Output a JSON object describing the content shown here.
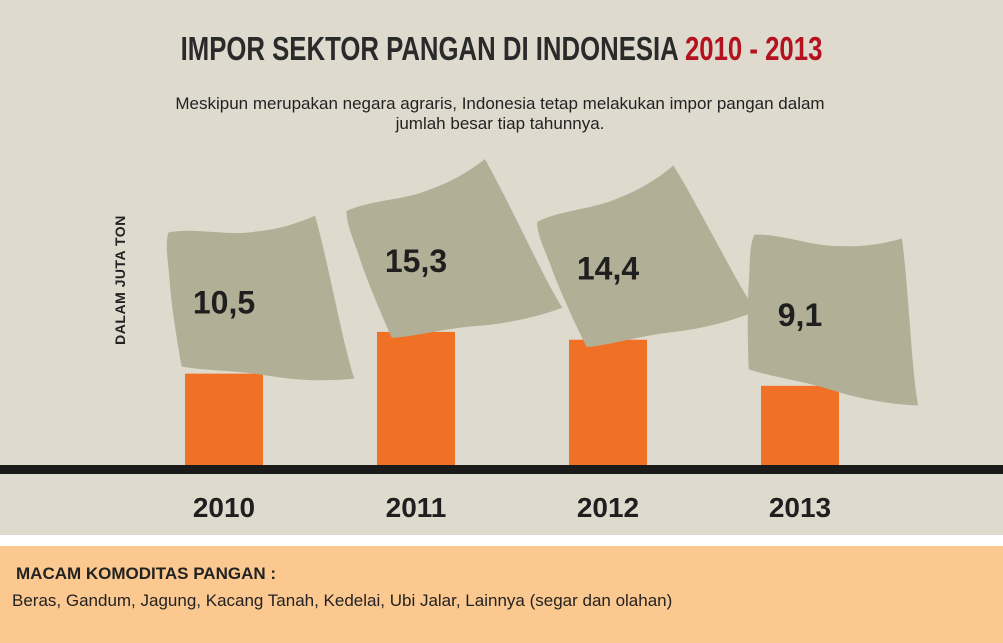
{
  "header": {
    "title_main": "IMPOR SEKTOR PANGAN DI INDONESIA",
    "title_years": "2010 - 2013",
    "subtitle": "Meskipun merupakan negara agraris, Indonesia tetap melakukan impor pangan dalam jumlah besar tiap tahunnya."
  },
  "chart_data": {
    "type": "bar",
    "categories": [
      "2010",
      "2011",
      "2012",
      "2013"
    ],
    "values": [
      10.5,
      15.3,
      14.4,
      9.1
    ],
    "value_labels": [
      "10,5",
      "15,3",
      "14,4",
      "9,1"
    ],
    "title": "IMPOR SEKTOR PANGAN DI INDONESIA 2010 - 2013",
    "ylabel": "DALAM JUTA TON",
    "xlabel": "",
    "grid": false,
    "legend": "none",
    "colors": {
      "bar": "#f07025",
      "sack": "#b1b097",
      "background": "#dedbce",
      "baseline": "#1a1a1a"
    }
  },
  "footer": {
    "heading": "MACAM KOMODITAS PANGAN :",
    "items": "Beras, Gandum, Jagung, Kacang Tanah, Kedelai, Ubi Jalar, Lainnya (segar dan olahan)"
  }
}
